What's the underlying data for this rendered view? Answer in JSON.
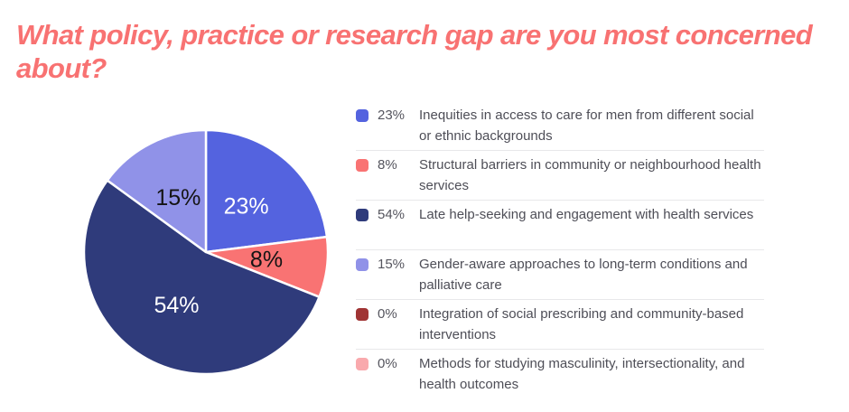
{
  "title": "What policy, practice or research gap are you most concerned about?",
  "title_color": "#F87272",
  "chart_data": {
    "type": "pie",
    "title": "What policy, practice or research gap are you most concerned about?",
    "start_angle_deg": 0,
    "direction": "clockwise",
    "legend_position": "right",
    "slice_border_color": "#ffffff",
    "segments": [
      {
        "label": "Inequities in access to care for men from different social or ethnic backgrounds",
        "value_pct": 23,
        "slice_label": "23%",
        "color": "#5463DF",
        "slice_label_color": "#ffffff"
      },
      {
        "label": "Structural barriers in community or neighbourhood health services",
        "value_pct": 8,
        "slice_label": "8%",
        "color": "#F97373",
        "slice_label_color": "#141414"
      },
      {
        "label": "Late help-seeking and engagement with health services",
        "value_pct": 54,
        "slice_label": "54%",
        "color": "#2F3B7B",
        "slice_label_color": "#ffffff"
      },
      {
        "label": "Gender-aware approaches to long-term conditions and palliative care",
        "value_pct": 15,
        "slice_label": "15%",
        "color": "#9092E8",
        "slice_label_color": "#141414"
      },
      {
        "label": "Integration of social prescribing and community-based interventions",
        "value_pct": 0,
        "slice_label": "0%",
        "color": "#A03434",
        "slice_label_color": "#141414"
      },
      {
        "label": "Methods for studying masculinity, intersectionality, and health outcomes",
        "value_pct": 0,
        "slice_label": "0%",
        "color": "#F9A9AD",
        "slice_label_color": "#141414"
      }
    ]
  }
}
